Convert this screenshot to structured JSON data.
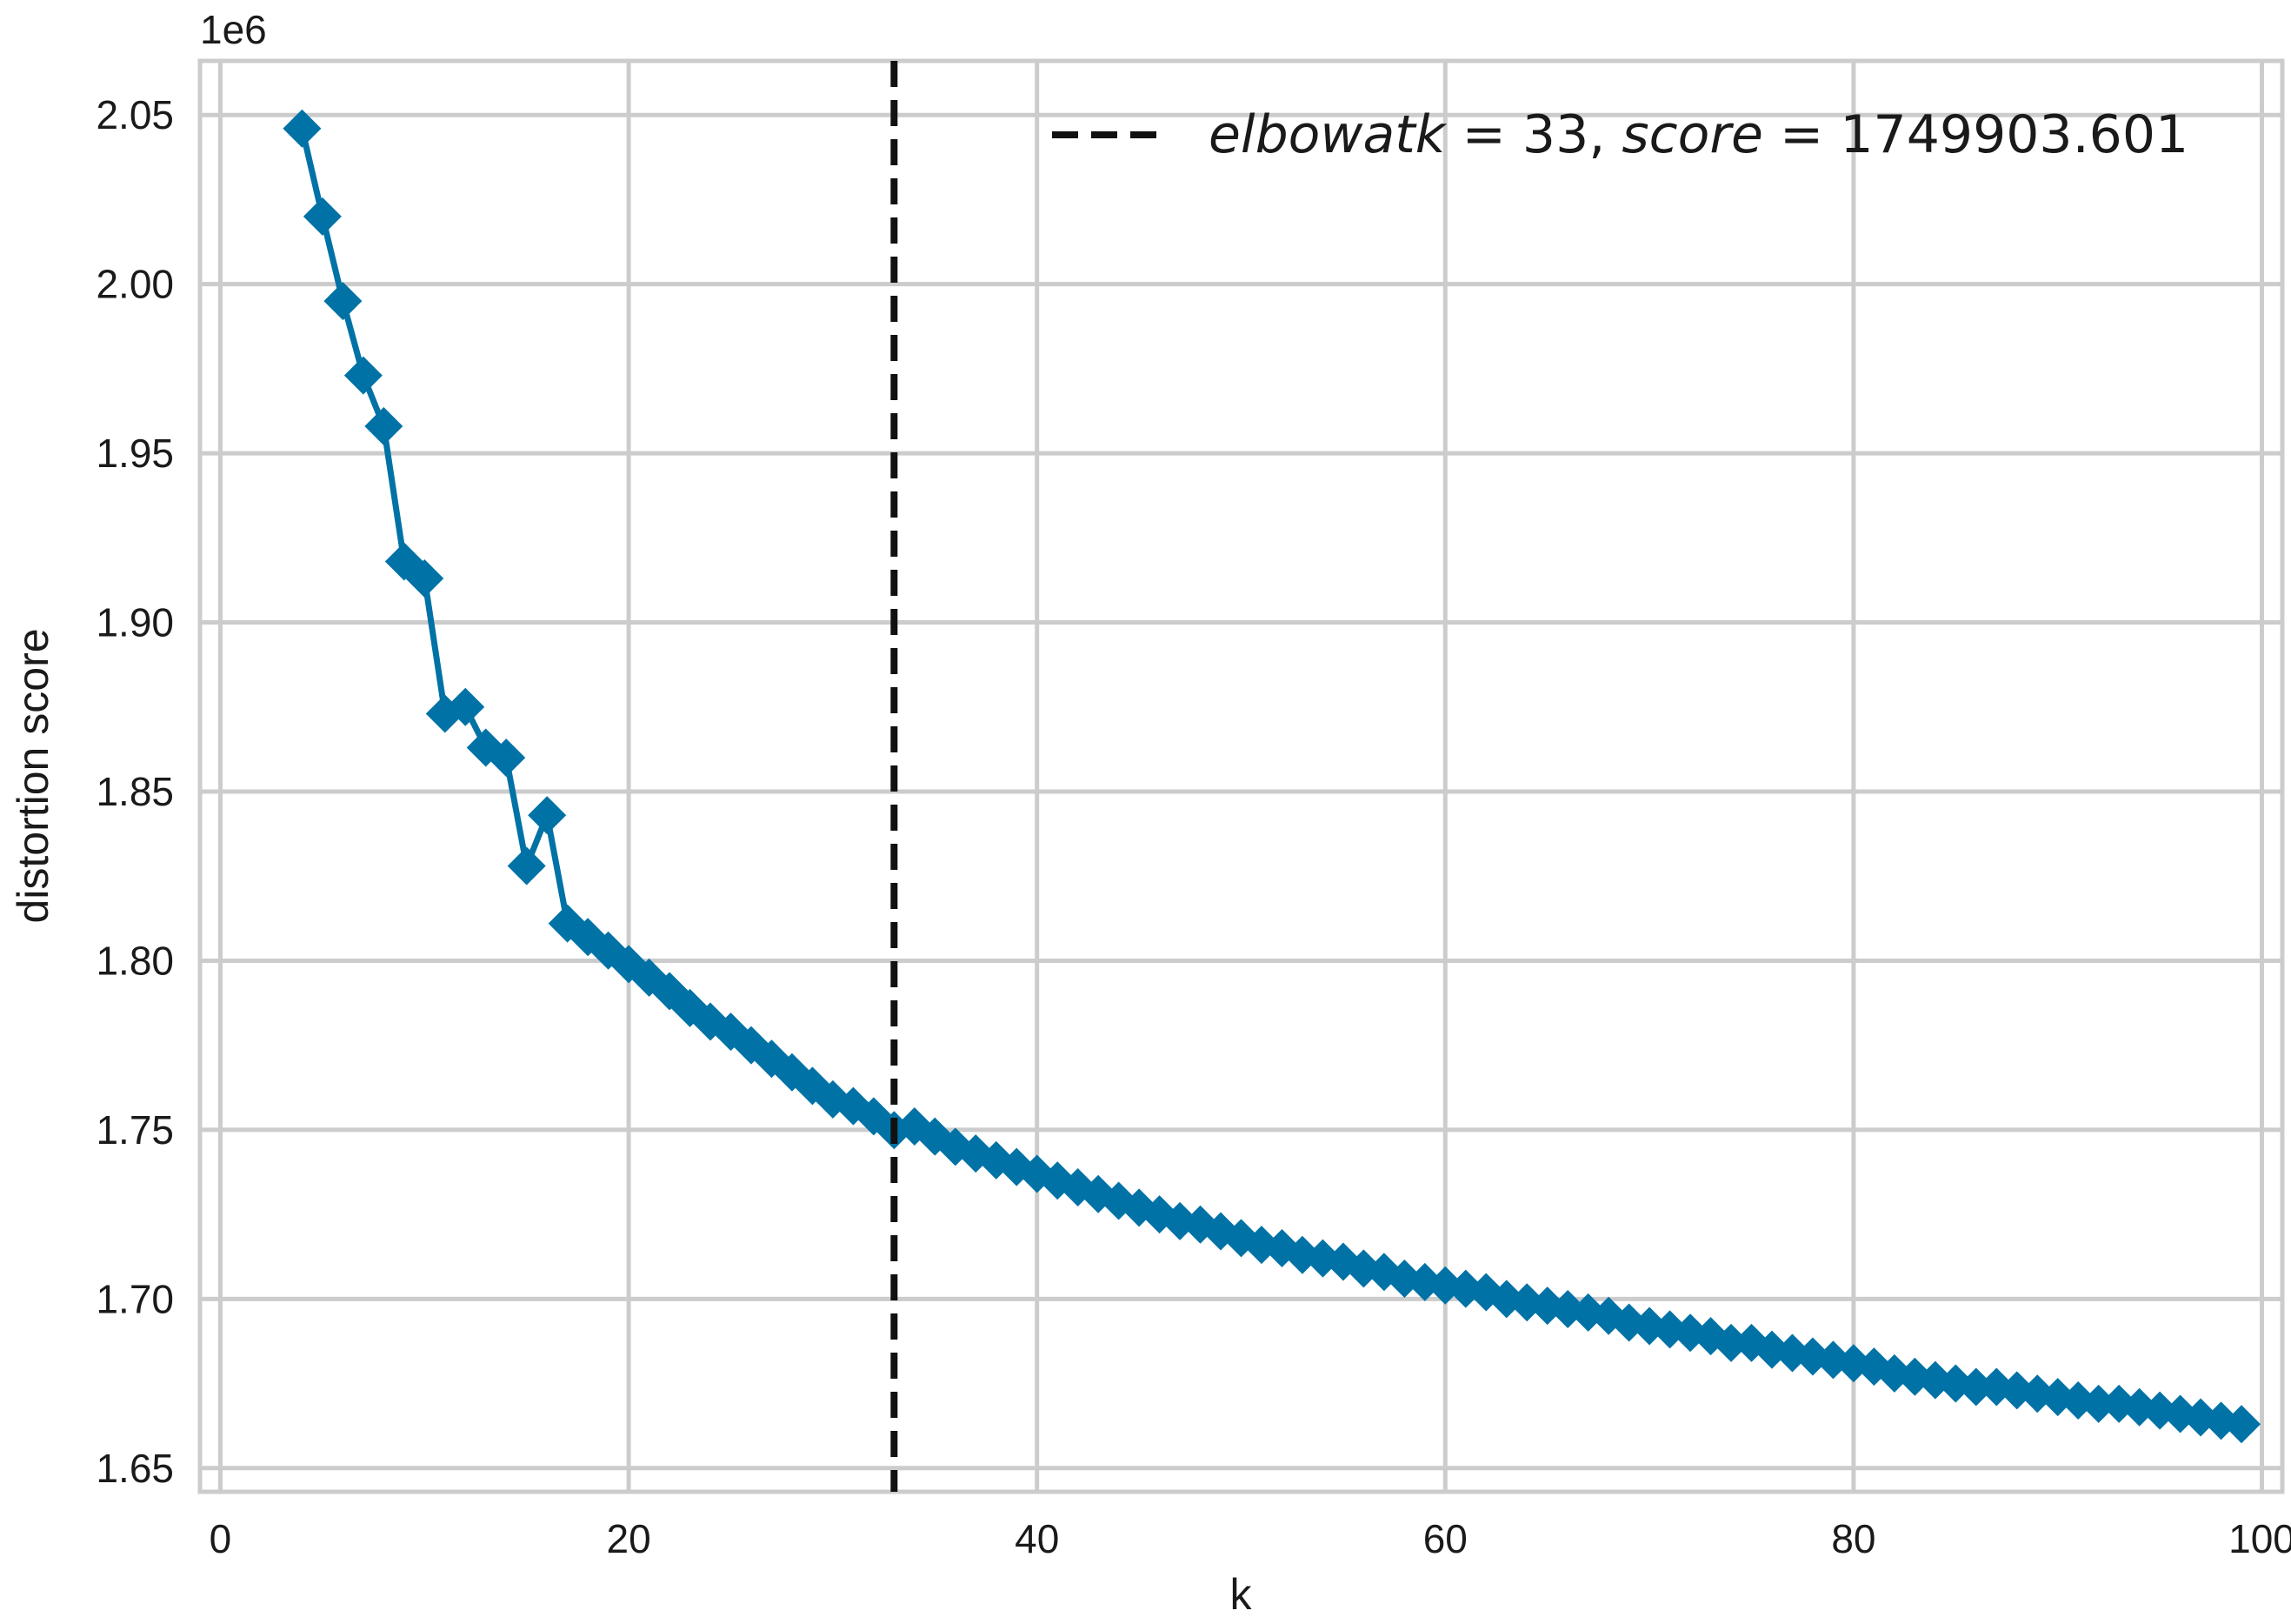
{
  "chart_data": {
    "type": "line",
    "xlabel": "k",
    "ylabel": "distortion score",
    "y_offset_label": "1e6",
    "xlim": [
      -1,
      101
    ],
    "ylim": [
      1643000,
      2066000
    ],
    "x_ticks": [
      0,
      20,
      40,
      60,
      80,
      100
    ],
    "x_tick_labels": [
      "0",
      "20",
      "40",
      "60",
      "80",
      "100"
    ],
    "y_ticks": [
      1650000,
      1700000,
      1750000,
      1800000,
      1850000,
      1900000,
      1950000,
      2000000,
      2050000
    ],
    "y_tick_labels": [
      "1.65",
      "1.70",
      "1.75",
      "1.80",
      "1.85",
      "1.90",
      "1.95",
      "2.00",
      "2.05"
    ],
    "grid": true,
    "marker": "diamond",
    "line_color": "#0072a6",
    "elbow_line_color": "#111111",
    "legend": {
      "position": "top-right",
      "parts": [
        {
          "text": "elbow",
          "style": "italic"
        },
        {
          "text": "at",
          "style": "italic"
        },
        {
          "text": "k",
          "style": "italic"
        },
        {
          "text": " = 33, ",
          "style": "normal"
        },
        {
          "text": "score",
          "style": "italic"
        },
        {
          "text": " = 1749903.601",
          "style": "normal"
        }
      ]
    },
    "elbow": {
      "k": 33,
      "score": 1749903.601
    },
    "series": [
      {
        "x": [
          4,
          5,
          6,
          7,
          8,
          9,
          10,
          11,
          12,
          13,
          14,
          15,
          16,
          17,
          18,
          19,
          20,
          21,
          22,
          23,
          24,
          25,
          26,
          27,
          28,
          29,
          30,
          31,
          32,
          33,
          34,
          35,
          36,
          37,
          38,
          39,
          40,
          41,
          42,
          43,
          44,
          45,
          46,
          47,
          48,
          49,
          50,
          51,
          52,
          53,
          54,
          55,
          56,
          57,
          58,
          59,
          60,
          61,
          62,
          63,
          64,
          65,
          66,
          67,
          68,
          69,
          70,
          71,
          72,
          73,
          74,
          75,
          76,
          77,
          78,
          79,
          80,
          81,
          82,
          83,
          84,
          85,
          86,
          87,
          88,
          89,
          90,
          91,
          92,
          93,
          94,
          95,
          96,
          97,
          98,
          99
        ],
        "values": [
          2046000,
          2020000,
          1995000,
          1973000,
          1958000,
          1918000,
          1913000,
          1873000,
          1875000,
          1863000,
          1860000,
          1828000,
          1843000,
          1811000,
          1807000,
          1803000,
          1799000,
          1795000,
          1791000,
          1786000,
          1782000,
          1779000,
          1775000,
          1771000,
          1767000,
          1763000,
          1759000,
          1757000,
          1754000,
          1749904,
          1751000,
          1748000,
          1745000,
          1743000,
          1741000,
          1739000,
          1737000,
          1735000,
          1733000,
          1731000,
          1729000,
          1727000,
          1725000,
          1723000,
          1722000,
          1720000,
          1718000,
          1716000,
          1715000,
          1713000,
          1712000,
          1711000,
          1709000,
          1708000,
          1706000,
          1705000,
          1704000,
          1703000,
          1702000,
          1700000,
          1699000,
          1698000,
          1697000,
          1696000,
          1695000,
          1693000,
          1692000,
          1691000,
          1690000,
          1689000,
          1687000,
          1687000,
          1685000,
          1684000,
          1683000,
          1682000,
          1681000,
          1680000,
          1678000,
          1677000,
          1676000,
          1675000,
          1674000,
          1674000,
          1673000,
          1672000,
          1671000,
          1670000,
          1669000,
          1669000,
          1668000,
          1667000,
          1666000,
          1665000,
          1664000,
          1663000
        ]
      }
    ]
  }
}
